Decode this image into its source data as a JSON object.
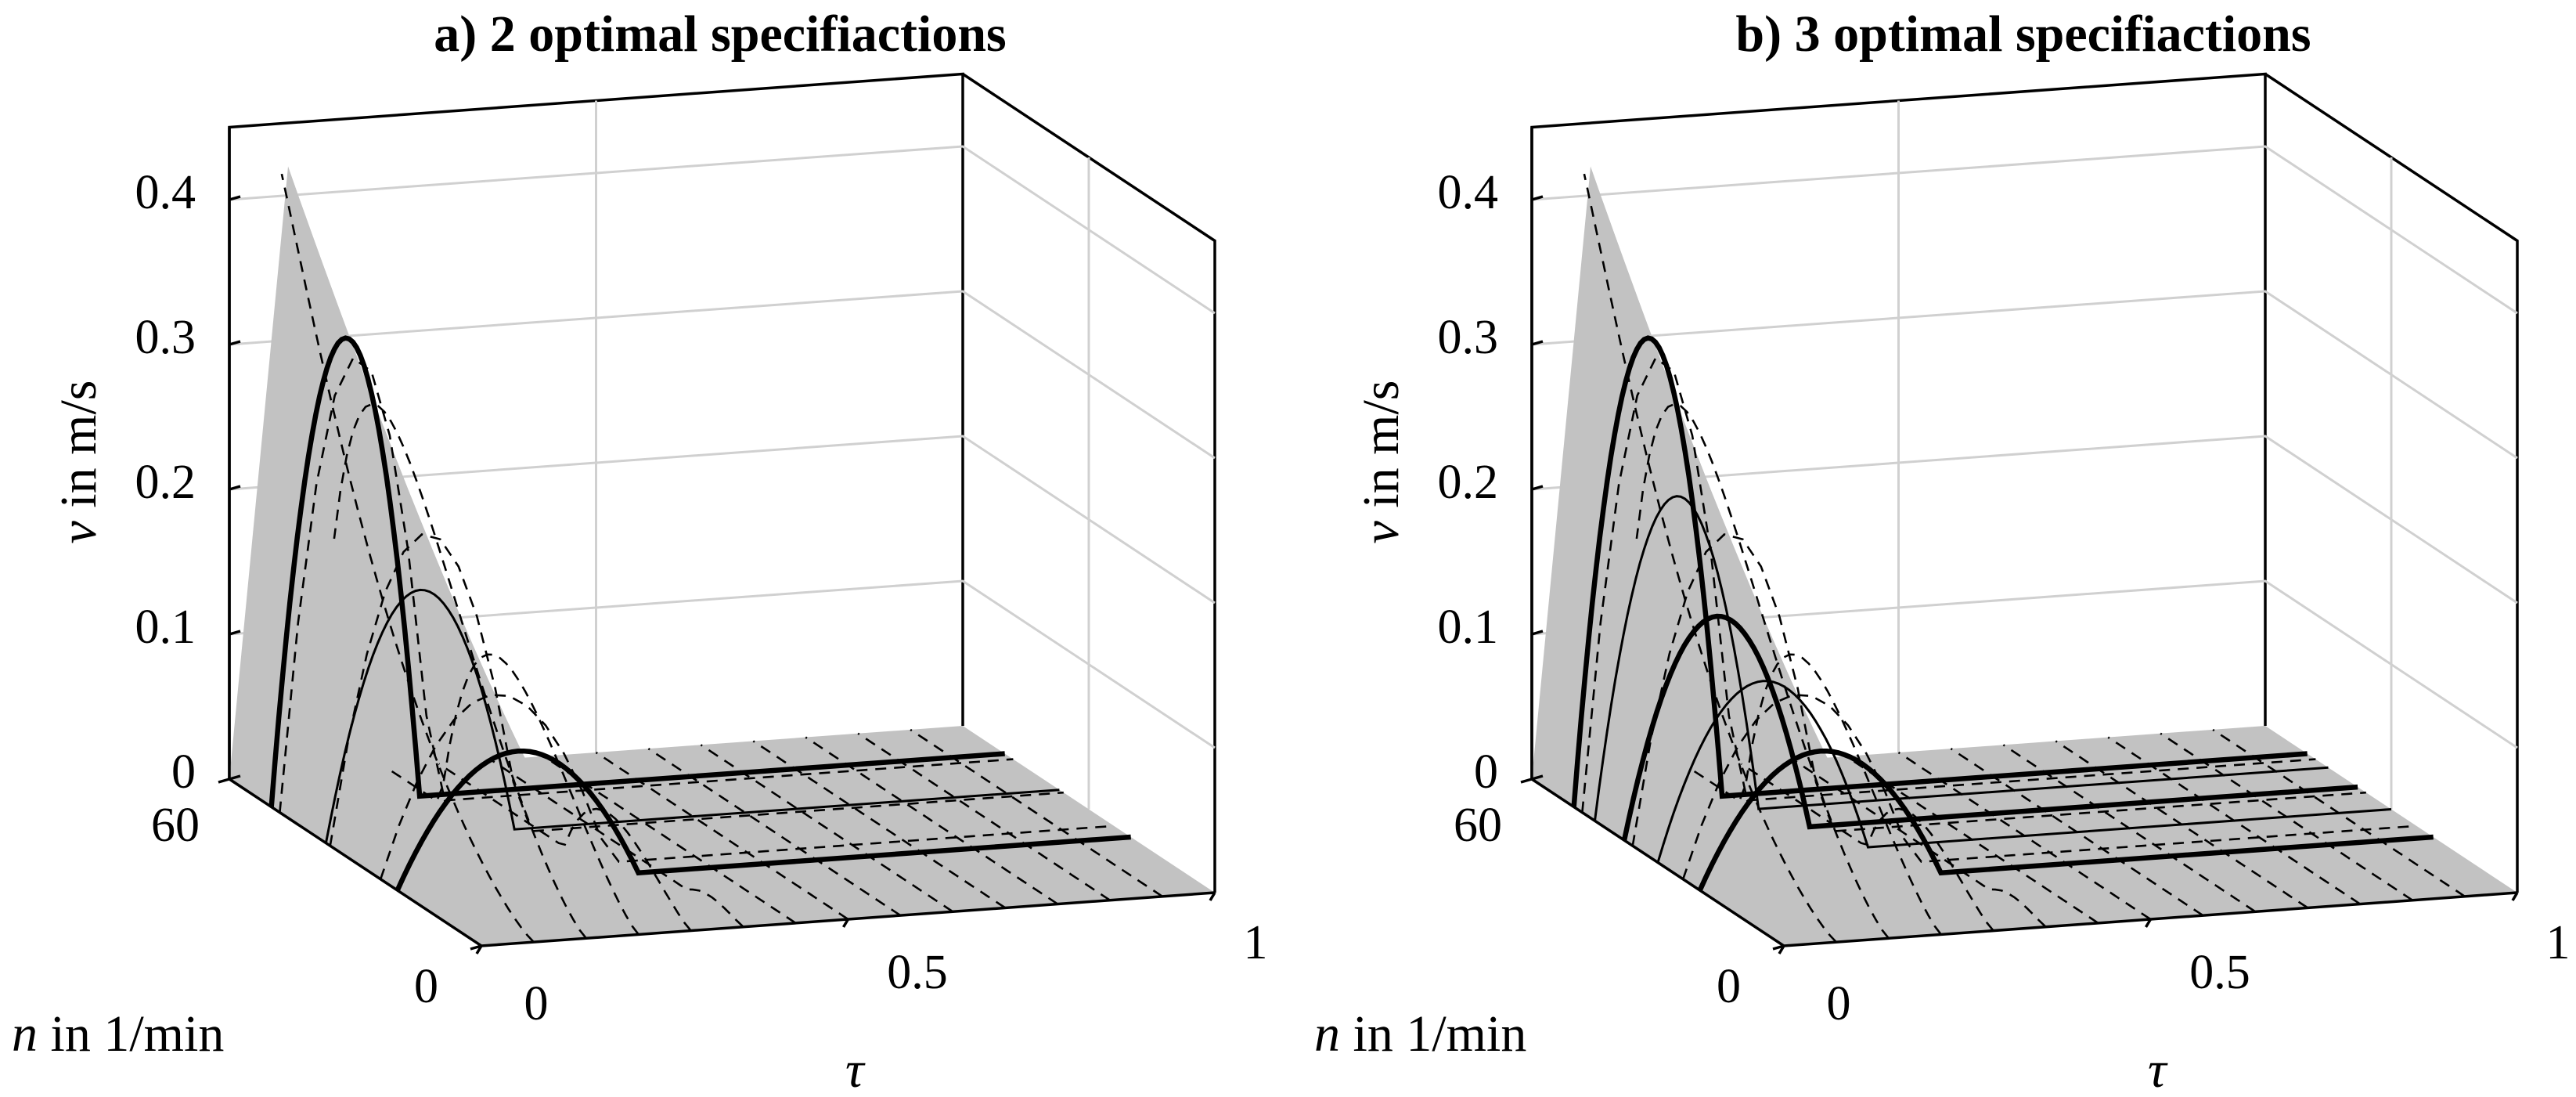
{
  "chart_data": [
    {
      "type": "surface-3d",
      "title": "a) 2 optimal specifiactions",
      "xlabel_italic": "n",
      "xlabel_rest": " in 1/min",
      "ylabel_italic": "τ",
      "ylabel_rest": "",
      "zlabel_italic": "v",
      "zlabel_rest": " in m/s",
      "x_range": [
        0,
        60
      ],
      "y_range": [
        0,
        1
      ],
      "z_range": [
        0,
        0.45
      ],
      "x_ticks": [
        "0",
        "60"
      ],
      "y_ticks": [
        "0",
        "0.5",
        "1"
      ],
      "z_ticks": [
        "0",
        "0.1",
        "0.2",
        "0.3",
        "0.4"
      ],
      "z_tick_values": [
        0,
        0.1,
        0.2,
        0.3,
        0.4
      ],
      "peak_v": 0.42,
      "specifications": [
        {
          "n": 50,
          "peak_v": 0.32,
          "thick": true
        },
        {
          "n": 37,
          "peak_v": 0.17,
          "thick": false
        },
        {
          "n": 20,
          "peak_v": 0.09,
          "thick": true
        }
      ]
    },
    {
      "type": "surface-3d",
      "title": "b) 3 optimal specifiactions",
      "xlabel_italic": "n",
      "xlabel_rest": " in 1/min",
      "ylabel_italic": "τ",
      "ylabel_rest": "",
      "zlabel_italic": "v",
      "zlabel_rest": " in m/s",
      "x_range": [
        0,
        60
      ],
      "y_range": [
        0,
        1
      ],
      "z_range": [
        0,
        0.45
      ],
      "x_ticks": [
        "0",
        "60"
      ],
      "y_ticks": [
        "0",
        "0.5",
        "1"
      ],
      "z_ticks": [
        "0",
        "0.1",
        "0.2",
        "0.3",
        "0.4"
      ],
      "z_tick_values": [
        0,
        0.1,
        0.2,
        0.3,
        0.4
      ],
      "peak_v": 0.42,
      "specifications": [
        {
          "n": 50,
          "peak_v": 0.32,
          "thick": true
        },
        {
          "n": 45,
          "peak_v": 0.22,
          "thick": false
        },
        {
          "n": 38,
          "peak_v": 0.15,
          "thick": true
        },
        {
          "n": 30,
          "peak_v": 0.12,
          "thick": false
        },
        {
          "n": 20,
          "peak_v": 0.09,
          "thick": true
        }
      ]
    }
  ]
}
